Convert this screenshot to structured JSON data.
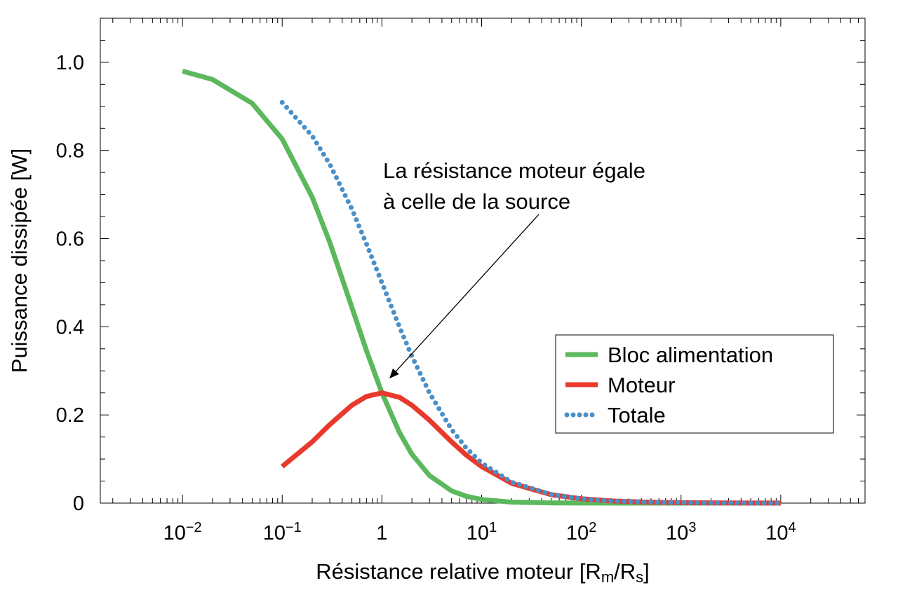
{
  "chart_data": {
    "type": "line",
    "title": "",
    "xlabel": {
      "main": "Résistance relative moteur [R",
      "sub1": "m",
      "mid": "/R",
      "sub2": "s",
      "end": "]"
    },
    "ylabel": "Puissance dissipée [W]",
    "x_scale": "log",
    "xlim": [
      0.0015,
      70000
    ],
    "ylim": [
      0,
      1.1
    ],
    "grid": false,
    "x_ticks": [
      {
        "value": 0.01,
        "base": "10",
        "exp": "−2"
      },
      {
        "value": 0.1,
        "base": "10",
        "exp": "−1"
      },
      {
        "value": 1,
        "base": "1",
        "exp": ""
      },
      {
        "value": 10,
        "base": "10",
        "exp": "1"
      },
      {
        "value": 100,
        "base": "10",
        "exp": "2"
      },
      {
        "value": 1000,
        "base": "10",
        "exp": "3"
      },
      {
        "value": 10000,
        "base": "10",
        "exp": "4"
      }
    ],
    "y_ticks": [
      {
        "value": 0,
        "label": "0"
      },
      {
        "value": 0.2,
        "label": "0.2"
      },
      {
        "value": 0.4,
        "label": "0.4"
      },
      {
        "value": 0.6,
        "label": "0.6"
      },
      {
        "value": 0.8,
        "label": "0.8"
      },
      {
        "value": 1.0,
        "label": "1.0"
      }
    ],
    "series": [
      {
        "name": "Bloc alimentation",
        "color": "#5cb85c",
        "style": "solid",
        "x": [
          0.01,
          0.02,
          0.05,
          0.1,
          0.2,
          0.3,
          0.5,
          0.7,
          1,
          1.5,
          2,
          3,
          5,
          7,
          10,
          20,
          50,
          100,
          1000,
          10000
        ],
        "y": [
          0.98,
          0.961,
          0.907,
          0.826,
          0.694,
          0.592,
          0.444,
          0.346,
          0.25,
          0.16,
          0.111,
          0.0625,
          0.0278,
          0.0156,
          0.0083,
          0.0023,
          0.0004,
          0.0001,
          0,
          0
        ]
      },
      {
        "name": "Moteur",
        "color": "#e8392c",
        "style": "solid",
        "x": [
          0.1,
          0.2,
          0.3,
          0.5,
          0.7,
          1,
          1.5,
          2,
          3,
          5,
          7,
          10,
          20,
          50,
          100,
          200,
          500,
          1000,
          3000,
          10000
        ],
        "y": [
          0.083,
          0.139,
          0.178,
          0.222,
          0.242,
          0.25,
          0.24,
          0.222,
          0.188,
          0.139,
          0.109,
          0.083,
          0.045,
          0.019,
          0.0098,
          0.005,
          0.002,
          0.001,
          0.0003,
          0.0001
        ]
      },
      {
        "name": "Totale",
        "color": "#4a90c8",
        "style": "dotted",
        "x": [
          0.1,
          0.2,
          0.3,
          0.5,
          0.7,
          1,
          1.5,
          2,
          3,
          5,
          7,
          10,
          20,
          50,
          100,
          200,
          500,
          1000,
          3000,
          10000
        ],
        "y": [
          0.909,
          0.833,
          0.769,
          0.667,
          0.588,
          0.5,
          0.4,
          0.333,
          0.25,
          0.167,
          0.125,
          0.0909,
          0.0476,
          0.0196,
          0.0099,
          0.005,
          0.002,
          0.001,
          0.0003,
          0.0001
        ]
      }
    ],
    "legend": {
      "position": "center-right",
      "entries": [
        "Bloc alimentation",
        "Moteur",
        "Totale"
      ]
    },
    "annotation": {
      "lines": [
        "La résistance moteur égale",
        "à celle de la source"
      ],
      "arrow_target": {
        "x": 1,
        "y": 0.25
      }
    }
  }
}
